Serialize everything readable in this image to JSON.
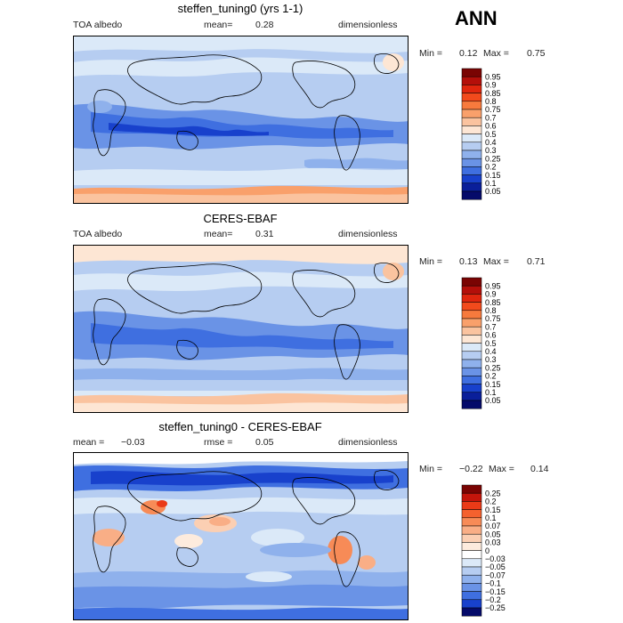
{
  "season": "ANN",
  "panels": [
    {
      "title": "steffen_tuning0 (yrs 1-1)",
      "left_label": "TOA albedo",
      "mid_label": "mean=",
      "mid_value": "0.28",
      "right_label": "dimensionless",
      "min_label": "Min =",
      "min_value": "0.12",
      "max_label": "Max =",
      "max_value": "0.75",
      "palette": "abs",
      "levels": [
        "0.95",
        "0.9",
        "0.85",
        "0.8",
        "0.75",
        "0.7",
        "0.6",
        "0.5",
        "0.4",
        "0.3",
        "0.25",
        "0.2",
        "0.15",
        "0.1",
        "0.05"
      ]
    },
    {
      "title": "CERES-EBAF",
      "left_label": "TOA albedo",
      "mid_label": "mean=",
      "mid_value": "0.31",
      "right_label": "dimensionless",
      "min_label": "Min =",
      "min_value": "0.13",
      "max_label": "Max =",
      "max_value": "0.71",
      "palette": "abs",
      "levels": [
        "0.95",
        "0.9",
        "0.85",
        "0.8",
        "0.75",
        "0.7",
        "0.6",
        "0.5",
        "0.4",
        "0.3",
        "0.25",
        "0.2",
        "0.15",
        "0.1",
        "0.05"
      ]
    },
    {
      "title": "steffen_tuning0 - CERES-EBAF",
      "left_label": "mean =",
      "left_value": "-0.03",
      "mid_label": "rmse =",
      "mid_value": "0.05",
      "right_label": "dimensionless",
      "min_label": "Min =",
      "min_value": "-0.22",
      "max_label": "Max =",
      "max_value": "0.14",
      "palette": "diff",
      "levels": [
        "0.25",
        "0.2",
        "0.15",
        "0.1",
        "0.07",
        "0.05",
        "0.03",
        "0",
        "-0.03",
        "-0.05",
        "-0.07",
        "-0.1",
        "-0.15",
        "-0.2",
        "-0.25"
      ]
    }
  ],
  "colors": {
    "abs": [
      "#7a0403",
      "#b40f0a",
      "#e0260e",
      "#f24a1c",
      "#f77a3d",
      "#f9a06b",
      "#fac39f",
      "#fde6d4",
      "#dbe9f8",
      "#b6cdf1",
      "#8fb1ec",
      "#6a93e6",
      "#3f6fe0",
      "#1841cc",
      "#0a1f9a",
      "#050b6a"
    ],
    "diff": [
      "#7a0403",
      "#c4150b",
      "#ea3a17",
      "#f4612e",
      "#f78b57",
      "#f9ae86",
      "#fbcfb3",
      "#fdebdd",
      "#ffffff",
      "#dbe9f8",
      "#b6cdf1",
      "#8fb1ec",
      "#6a93e6",
      "#3f6fe0",
      "#1841cc",
      "#050b6a"
    ]
  }
}
